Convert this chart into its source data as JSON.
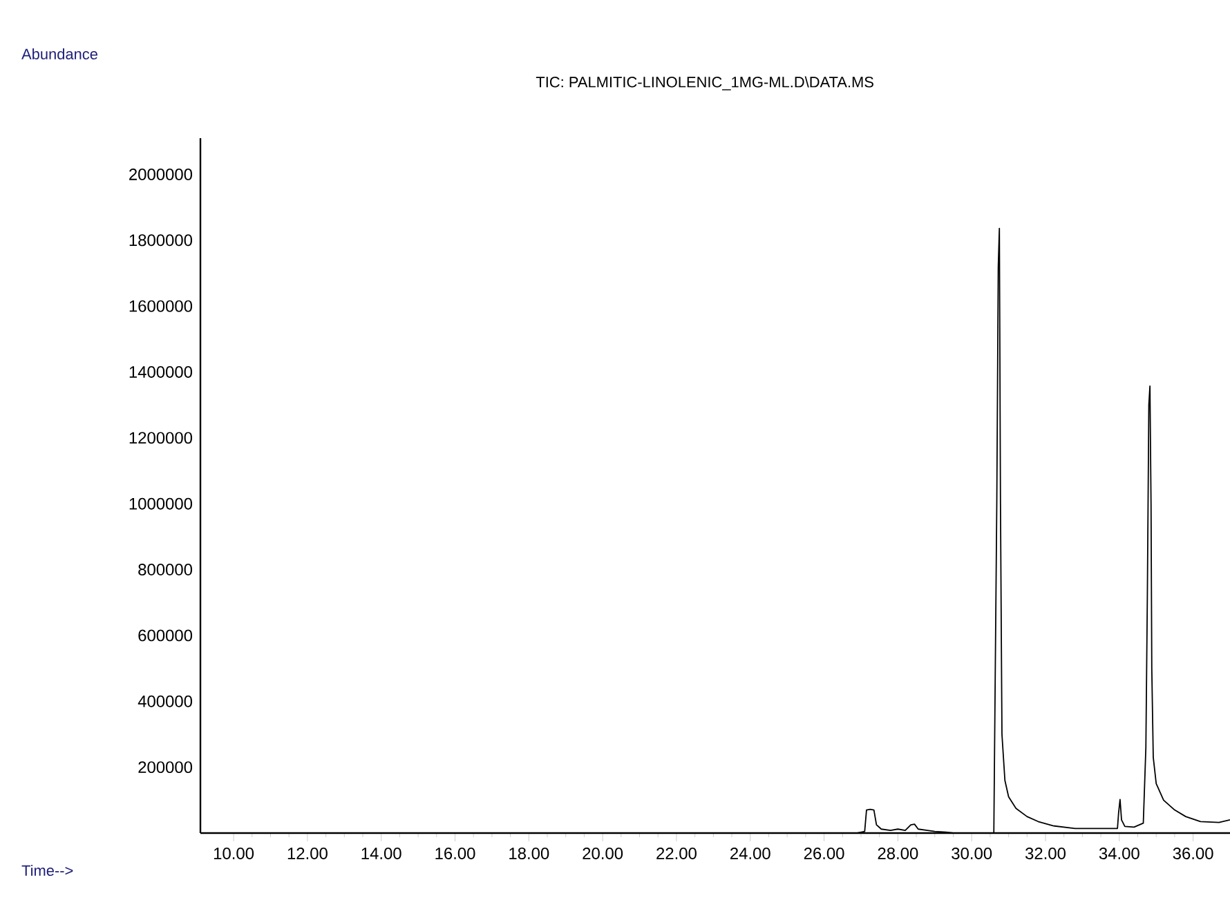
{
  "chart_data": {
    "type": "line",
    "title": "TIC: PALMITIC-LINOLENIC_1MG-ML.D\\DATA.MS",
    "xlabel": "Time-->",
    "annotations": [
      "Abundance"
    ],
    "xlim": [
      9.1,
      37.0
    ],
    "ylim": [
      0,
      2110000
    ],
    "xticks": [
      {
        "value": 10,
        "label": "10.00"
      },
      {
        "value": 12,
        "label": "12.00"
      },
      {
        "value": 14,
        "label": "14.00"
      },
      {
        "value": 16,
        "label": "16.00"
      },
      {
        "value": 18,
        "label": "18.00"
      },
      {
        "value": 20,
        "label": "20.00"
      },
      {
        "value": 22,
        "label": "22.00"
      },
      {
        "value": 24,
        "label": "24.00"
      },
      {
        "value": 26,
        "label": "26.00"
      },
      {
        "value": 28,
        "label": "28.00"
      },
      {
        "value": 30,
        "label": "30.00"
      },
      {
        "value": 32,
        "label": "32.00"
      },
      {
        "value": 34,
        "label": "34.00"
      },
      {
        "value": 36,
        "label": "36.00"
      }
    ],
    "yticks": [
      200000,
      400000,
      600000,
      800000,
      1000000,
      1200000,
      1400000,
      1600000,
      1800000,
      2000000
    ],
    "grid": false,
    "marker": "none",
    "line_style": "solid",
    "series": [
      {
        "color": "#000000",
        "x": [
          26.9,
          27.1,
          27.15,
          27.25,
          27.35,
          27.42,
          27.55,
          27.8,
          28.0,
          28.2,
          28.35,
          28.45,
          28.55,
          28.8,
          29.0,
          29.3,
          29.5,
          30.6,
          30.63,
          30.68,
          30.72,
          30.75,
          30.78,
          30.82,
          30.9,
          31.0,
          31.2,
          31.5,
          31.8,
          32.2,
          32.8,
          33.5,
          33.95,
          33.98,
          34.02,
          34.06,
          34.15,
          34.4,
          34.65,
          34.72,
          34.76,
          34.8,
          34.83,
          34.86,
          34.88,
          34.92,
          35.0,
          35.2,
          35.5,
          35.8,
          36.2,
          36.7,
          37.0
        ],
        "values": [
          0,
          5000,
          70000,
          72000,
          70000,
          25000,
          12000,
          8000,
          12000,
          8000,
          25000,
          27000,
          12000,
          8000,
          5000,
          3000,
          0,
          0,
          380000,
          1000000,
          1720000,
          1836000,
          1000000,
          300000,
          160000,
          110000,
          75000,
          50000,
          35000,
          22000,
          14000,
          14000,
          14000,
          60000,
          102000,
          40000,
          20000,
          18000,
          30000,
          260000,
          720000,
          1300000,
          1357000,
          1000000,
          500000,
          230000,
          150000,
          100000,
          70000,
          50000,
          35000,
          32000,
          40000
        ]
      }
    ]
  }
}
